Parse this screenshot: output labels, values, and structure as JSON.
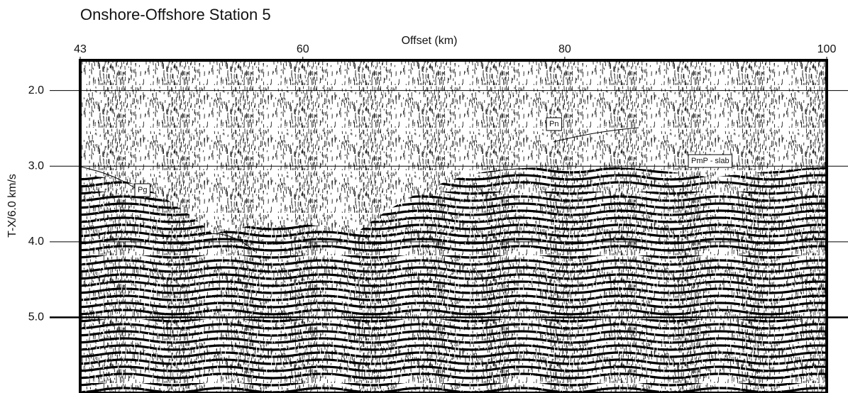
{
  "chart_data": {
    "type": "seismic",
    "title": "Onshore-Offshore Station 5",
    "x_label": "Offset (km)",
    "y_label": "T-X/6.0 km/s",
    "xlim": [
      43,
      100
    ],
    "xticks": [
      43,
      60,
      80,
      100
    ],
    "ylim": [
      6.0,
      1.6
    ],
    "yticks": [
      {
        "value": 2,
        "label": "2.0"
      },
      {
        "value": 3,
        "label": "3.0"
      },
      {
        "value": 4,
        "label": "4.0"
      },
      {
        "value": 5,
        "label": "5.0"
      }
    ],
    "grid": true,
    "annotations": [
      "Pn",
      "PmP - slab",
      "Pg"
    ]
  }
}
